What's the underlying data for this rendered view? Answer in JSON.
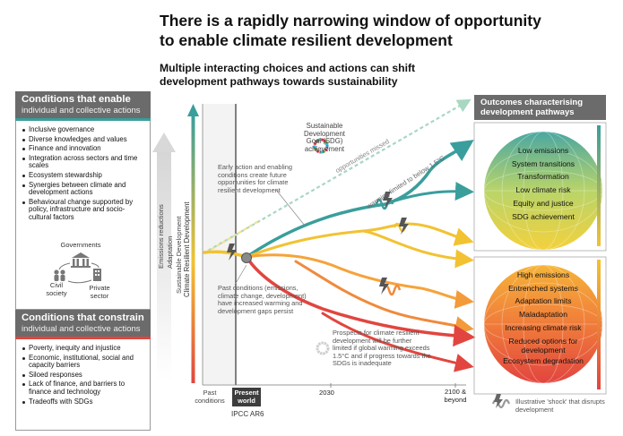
{
  "title": {
    "line1": "There is a rapidly narrowing window of opportunity",
    "line2": "to enable climate resilient development"
  },
  "subtitle": {
    "line1": "Multiple interacting choices and actions can shift",
    "line2": "development pathways towards sustainability"
  },
  "enable_panel": {
    "heading": "Conditions that enable",
    "subheading": "individual and collective actions",
    "items": [
      "Inclusive governance",
      "Diverse knowledges and values",
      "Finance and innovation",
      "Integration across sectors and time scales",
      "Ecosystem stewardship",
      "Synergies between climate and development actions",
      "Behavioural change supported by policy, infrastructure and socio-cultural factors"
    ],
    "actors": {
      "governments": "Governments",
      "civil_society": "Civil society",
      "private_sector": "Private sector"
    }
  },
  "constrain_panel": {
    "heading": "Conditions that constrain",
    "subheading": "individual and collective actions",
    "items": [
      "Poverty, inequity and injustice",
      "Economic, institutional, social and capacity barriers",
      "Siloed responses",
      "Lack of finance, and barriers to finance and technology",
      "Tradeoffs with SDGs"
    ]
  },
  "vertical_labels": {
    "emissions": "Emissions reductions",
    "adaptation": "Adaptation",
    "sustainable": "Sustainable Development",
    "crd": "Climate Resilient Development"
  },
  "annotations": {
    "sdg_line1": "Sustainable Development",
    "sdg_line2": "Goal (SDG) achievement",
    "opportunities_missed": "opportunities missed",
    "warming_limited": "warming limited to below 1.5°C",
    "early_action": "Early action and enabling conditions create future opportunities for climate resilient development",
    "past_conditions": "Past conditions (emissions, climate change, development) have increased warming and development gaps persist",
    "prospects": "Prospects for climate resilient development will be further limited if global warming exceeds 1.5°C and if progress towards the SDGs is inadequate"
  },
  "timeline": {
    "past": "Past conditions",
    "present": "Present world",
    "ipcc": "IPCC AR6",
    "y2030": "2030",
    "y2100": "2100 & beyond"
  },
  "outcomes": {
    "heading_line1": "Outcomes characterising",
    "heading_line2": "development pathways",
    "positive": [
      "Low emissions",
      "System transitions",
      "Transformation",
      "Low climate risk",
      "Equity and justice",
      "SDG achievement"
    ],
    "negative": [
      "High emissions",
      "Entrenched systems",
      "Adaptation limits",
      "Maladaptation",
      "Increasing climate risk",
      "Reduced options for development",
      "Ecosystem degradation"
    ]
  },
  "legend": {
    "shock": "Illustrative 'shock' that disrupts development"
  },
  "colors": {
    "teal": "#3a9e9c",
    "yellow": "#f2c232",
    "orange": "#f08a3c",
    "red": "#e2453f",
    "panel_grey": "#6b6b6b"
  }
}
